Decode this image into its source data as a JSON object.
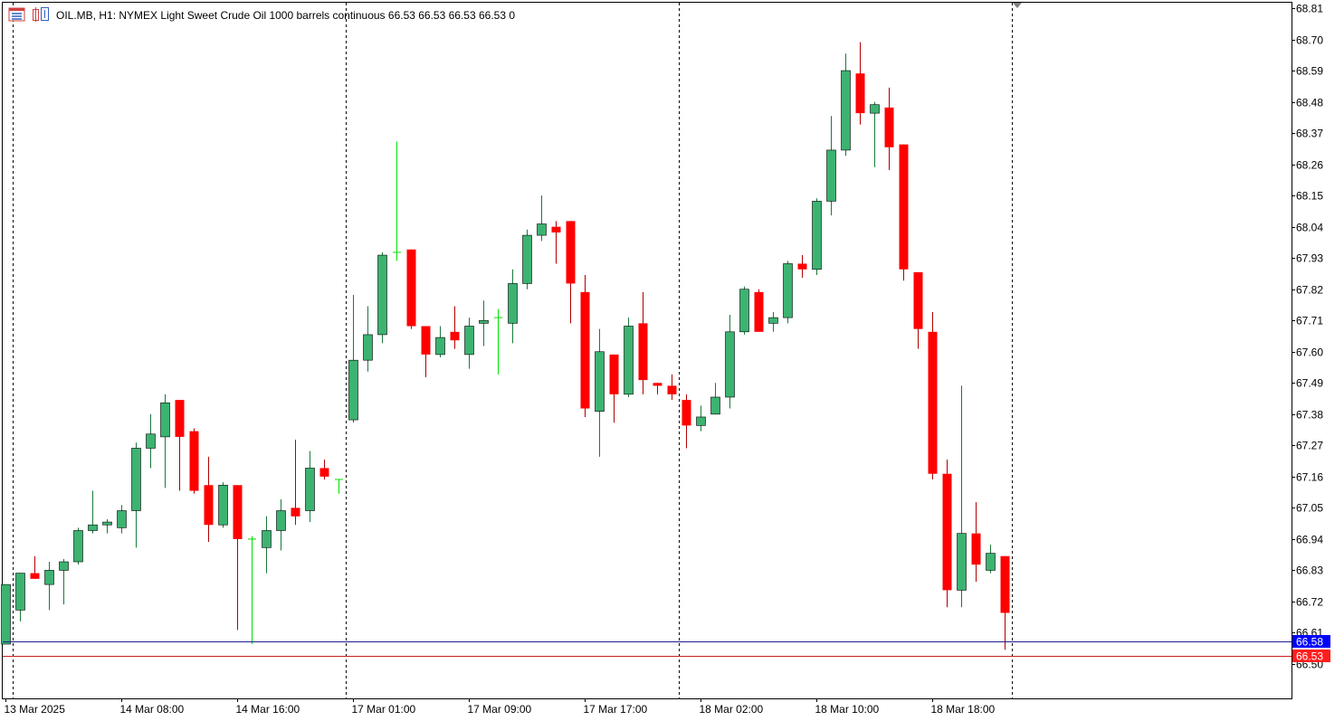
{
  "header": {
    "symbol": "OIL.MB",
    "timeframe": "H1:",
    "description": "NYMEX Light Sweet Crude Oil 1000 barrels continuous",
    "ohlc": "66.53 66.53 66.53 66.53",
    "volume": "0"
  },
  "price_tags": {
    "ask": "66.58",
    "bid": "66.53"
  },
  "colors": {
    "bull": "#3cb371",
    "bear": "#ff0000",
    "doji": "#00e000",
    "ask_line": "#1c1c8c",
    "bid_line": "#cc2020",
    "ask_tag": "#0000ff",
    "bid_tag": "#ff1e1e"
  },
  "icons": [
    "chart-menu-icon",
    "chart-indicators-icon"
  ],
  "chart_data": {
    "type": "candlestick",
    "ylim": [
      66.45,
      68.83
    ],
    "y_ticks": [
      "68.81",
      "68.70",
      "68.59",
      "68.48",
      "68.37",
      "68.26",
      "68.15",
      "68.04",
      "67.93",
      "67.82",
      "67.71",
      "67.60",
      "67.49",
      "67.38",
      "67.27",
      "67.16",
      "67.05",
      "66.94",
      "66.83",
      "66.72",
      "66.61",
      "66.50"
    ],
    "x_tick_labels": [
      {
        "bar": 0,
        "label": "13 Mar 2025"
      },
      {
        "bar": 8,
        "label": "14 Mar 08:00"
      },
      {
        "bar": 16,
        "label": "14 Mar 16:00"
      },
      {
        "bar": 24,
        "label": "17 Mar 01:00"
      },
      {
        "bar": 32,
        "label": "17 Mar 09:00"
      },
      {
        "bar": 40,
        "label": "17 Mar 17:00"
      },
      {
        "bar": 48,
        "label": "18 Mar 02:00"
      },
      {
        "bar": 56,
        "label": "18 Mar 10:00"
      },
      {
        "bar": 64,
        "label": "18 Mar 18:00"
      }
    ],
    "separator_bars": [
      0.5,
      23.5,
      46.5,
      69.5
    ],
    "candles": [
      {
        "o": 66.57,
        "h": 66.78,
        "l": 66.57,
        "c": 66.78
      },
      {
        "o": 66.69,
        "h": 66.82,
        "l": 66.65,
        "c": 66.82
      },
      {
        "o": 66.82,
        "h": 66.88,
        "l": 66.8,
        "c": 66.8
      },
      {
        "o": 66.78,
        "h": 66.86,
        "l": 66.69,
        "c": 66.83
      },
      {
        "o": 66.83,
        "h": 66.87,
        "l": 66.71,
        "c": 66.86
      },
      {
        "o": 66.86,
        "h": 66.98,
        "l": 66.85,
        "c": 66.97
      },
      {
        "o": 66.97,
        "h": 67.11,
        "l": 66.96,
        "c": 66.99
      },
      {
        "o": 66.99,
        "h": 67.01,
        "l": 66.96,
        "c": 67.0
      },
      {
        "o": 66.98,
        "h": 67.06,
        "l": 66.96,
        "c": 67.04
      },
      {
        "o": 67.04,
        "h": 67.28,
        "l": 66.91,
        "c": 67.26
      },
      {
        "o": 67.26,
        "h": 67.38,
        "l": 67.19,
        "c": 67.31
      },
      {
        "o": 67.3,
        "h": 67.45,
        "l": 67.12,
        "c": 67.42
      },
      {
        "o": 67.43,
        "h": 67.43,
        "l": 67.11,
        "c": 67.3
      },
      {
        "o": 67.32,
        "h": 67.33,
        "l": 67.1,
        "c": 67.11
      },
      {
        "o": 67.13,
        "h": 67.23,
        "l": 66.93,
        "c": 66.99
      },
      {
        "o": 66.99,
        "h": 67.14,
        "l": 66.98,
        "c": 67.13
      },
      {
        "o": 67.13,
        "h": 67.13,
        "l": 66.62,
        "c": 66.94
      },
      {
        "o": 66.94,
        "h": 66.95,
        "l": 66.57,
        "c": 66.94
      },
      {
        "o": 66.91,
        "h": 67.02,
        "l": 66.82,
        "c": 66.97
      },
      {
        "o": 66.97,
        "h": 67.08,
        "l": 66.9,
        "c": 67.04
      },
      {
        "o": 67.05,
        "h": 67.29,
        "l": 66.99,
        "c": 67.02
      },
      {
        "o": 67.04,
        "h": 67.25,
        "l": 67.0,
        "c": 67.19
      },
      {
        "o": 67.19,
        "h": 67.22,
        "l": 67.15,
        "c": 67.16
      },
      {
        "o": 67.15,
        "h": 67.15,
        "l": 67.1,
        "c": 67.15
      },
      {
        "o": 67.36,
        "h": 67.8,
        "l": 67.35,
        "c": 67.57
      },
      {
        "o": 67.57,
        "h": 67.76,
        "l": 67.53,
        "c": 67.66
      },
      {
        "o": 67.66,
        "h": 67.95,
        "l": 67.63,
        "c": 67.94
      },
      {
        "o": 67.95,
        "h": 68.34,
        "l": 67.92,
        "c": 67.95
      },
      {
        "o": 67.96,
        "h": 67.96,
        "l": 67.68,
        "c": 67.69
      },
      {
        "o": 67.69,
        "h": 67.69,
        "l": 67.51,
        "c": 67.59
      },
      {
        "o": 67.59,
        "h": 67.69,
        "l": 67.58,
        "c": 67.65
      },
      {
        "o": 67.67,
        "h": 67.76,
        "l": 67.61,
        "c": 67.64
      },
      {
        "o": 67.59,
        "h": 67.72,
        "l": 67.54,
        "c": 67.69
      },
      {
        "o": 67.7,
        "h": 67.78,
        "l": 67.62,
        "c": 67.71
      },
      {
        "o": 67.72,
        "h": 67.75,
        "l": 67.52,
        "c": 67.72
      },
      {
        "o": 67.7,
        "h": 67.89,
        "l": 67.63,
        "c": 67.84
      },
      {
        "o": 67.84,
        "h": 68.03,
        "l": 67.82,
        "c": 68.01
      },
      {
        "o": 68.01,
        "h": 68.15,
        "l": 67.99,
        "c": 68.05
      },
      {
        "o": 68.04,
        "h": 68.06,
        "l": 67.91,
        "c": 68.02
      },
      {
        "o": 68.06,
        "h": 68.06,
        "l": 67.7,
        "c": 67.84
      },
      {
        "o": 67.81,
        "h": 67.87,
        "l": 67.37,
        "c": 67.4
      },
      {
        "o": 67.39,
        "h": 67.68,
        "l": 67.23,
        "c": 67.6
      },
      {
        "o": 67.59,
        "h": 67.59,
        "l": 67.35,
        "c": 67.45
      },
      {
        "o": 67.45,
        "h": 67.72,
        "l": 67.44,
        "c": 67.69
      },
      {
        "o": 67.7,
        "h": 67.81,
        "l": 67.45,
        "c": 67.5
      },
      {
        "o": 67.49,
        "h": 67.49,
        "l": 67.45,
        "c": 67.48
      },
      {
        "o": 67.48,
        "h": 67.52,
        "l": 67.43,
        "c": 67.45
      },
      {
        "o": 67.43,
        "h": 67.45,
        "l": 67.26,
        "c": 67.34
      },
      {
        "o": 67.34,
        "h": 67.41,
        "l": 67.32,
        "c": 67.37
      },
      {
        "o": 67.38,
        "h": 67.49,
        "l": 67.38,
        "c": 67.44
      },
      {
        "o": 67.44,
        "h": 67.73,
        "l": 67.4,
        "c": 67.67
      },
      {
        "o": 67.67,
        "h": 67.83,
        "l": 67.66,
        "c": 67.82
      },
      {
        "o": 67.81,
        "h": 67.82,
        "l": 67.67,
        "c": 67.67
      },
      {
        "o": 67.7,
        "h": 67.74,
        "l": 67.67,
        "c": 67.72
      },
      {
        "o": 67.72,
        "h": 67.92,
        "l": 67.7,
        "c": 67.91
      },
      {
        "o": 67.91,
        "h": 67.94,
        "l": 67.86,
        "c": 67.89
      },
      {
        "o": 67.89,
        "h": 68.14,
        "l": 67.87,
        "c": 68.13
      },
      {
        "o": 68.13,
        "h": 68.43,
        "l": 68.08,
        "c": 68.31
      },
      {
        "o": 68.31,
        "h": 68.65,
        "l": 68.29,
        "c": 68.59
      },
      {
        "o": 68.58,
        "h": 68.69,
        "l": 68.4,
        "c": 68.44
      },
      {
        "o": 68.44,
        "h": 68.48,
        "l": 68.25,
        "c": 68.47
      },
      {
        "o": 68.46,
        "h": 68.53,
        "l": 68.24,
        "c": 68.32
      },
      {
        "o": 68.33,
        "h": 68.33,
        "l": 67.85,
        "c": 67.89
      },
      {
        "o": 67.88,
        "h": 67.88,
        "l": 67.61,
        "c": 67.68
      },
      {
        "o": 67.67,
        "h": 67.74,
        "l": 67.15,
        "c": 67.17
      },
      {
        "o": 67.17,
        "h": 67.22,
        "l": 66.7,
        "c": 66.76
      },
      {
        "o": 66.76,
        "h": 67.48,
        "l": 66.7,
        "c": 66.96
      },
      {
        "o": 66.96,
        "h": 67.07,
        "l": 66.79,
        "c": 66.85
      },
      {
        "o": 66.83,
        "h": 66.92,
        "l": 66.82,
        "c": 66.89
      },
      {
        "o": 66.88,
        "h": 66.88,
        "l": 66.55,
        "c": 66.68
      }
    ]
  }
}
